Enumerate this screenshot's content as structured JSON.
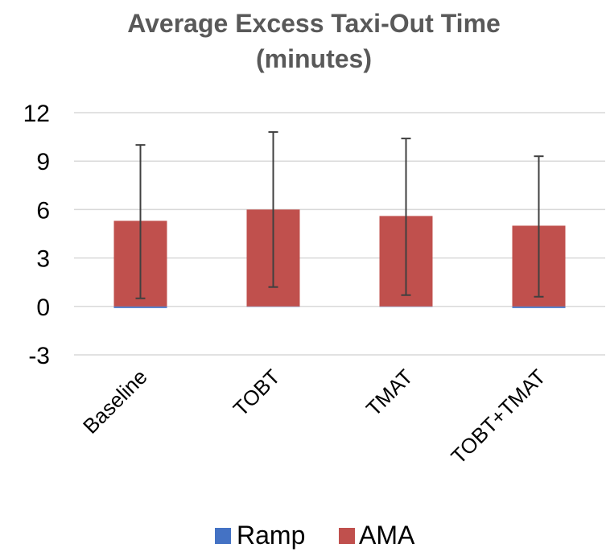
{
  "chart_data": {
    "type": "bar",
    "title_line1": "Average Excess Taxi-Out Time",
    "title_line2": "(minutes)",
    "categories": [
      "Baseline",
      "TOBT",
      "TMAT",
      "TOBT+TMAT"
    ],
    "series": [
      {
        "name": "Ramp",
        "color": "#4472C4",
        "values": [
          -0.1,
          0.0,
          0.0,
          -0.1
        ]
      },
      {
        "name": "AMA",
        "color": "#C0504D",
        "values": [
          5.3,
          6.0,
          5.6,
          5.0
        ]
      }
    ],
    "error_bars": [
      {
        "low": 0.5,
        "high": 10.0
      },
      {
        "low": 1.2,
        "high": 10.8
      },
      {
        "low": 0.7,
        "high": 10.4
      },
      {
        "low": 0.6,
        "high": 9.3
      }
    ],
    "yticks": [
      "12",
      "9",
      "6",
      "3",
      "0",
      "-3"
    ],
    "ylim": [
      -3,
      12
    ],
    "grid": true,
    "legend_position": "bottom",
    "gridline_color": "#D9D9D9",
    "error_bar_color": "#404040"
  }
}
